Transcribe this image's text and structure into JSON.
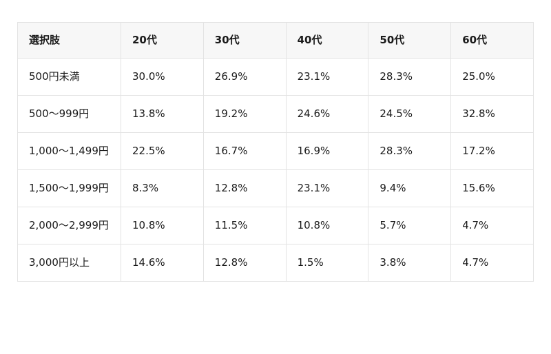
{
  "chart_data": {
    "type": "table",
    "title": "",
    "unit": "%",
    "columns": [
      "選択肢",
      "20代",
      "30代",
      "40代",
      "50代",
      "60代"
    ],
    "categories": [
      "20代",
      "30代",
      "40代",
      "50代",
      "60代"
    ],
    "rows": [
      {
        "label": "500円未満",
        "values": [
          30.0,
          26.9,
          23.1,
          28.3,
          25.0
        ]
      },
      {
        "label": "500〜999円",
        "values": [
          13.8,
          19.2,
          24.6,
          24.5,
          32.8
        ]
      },
      {
        "label": "1,000〜1,499円",
        "values": [
          22.5,
          16.7,
          16.9,
          28.3,
          17.2
        ]
      },
      {
        "label": "1,500〜1,999円",
        "values": [
          8.3,
          12.8,
          23.1,
          9.4,
          15.6
        ]
      },
      {
        "label": "2,000〜2,999円",
        "values": [
          10.8,
          11.5,
          10.8,
          5.7,
          4.7
        ]
      },
      {
        "label": "3,000円以上",
        "values": [
          14.6,
          12.8,
          1.5,
          3.8,
          4.7
        ]
      }
    ]
  },
  "colors": {
    "page_background": "#ffffff",
    "header_background": "#f7f7f7",
    "border": "#e3e3e3",
    "text": "#1a1a1a"
  }
}
